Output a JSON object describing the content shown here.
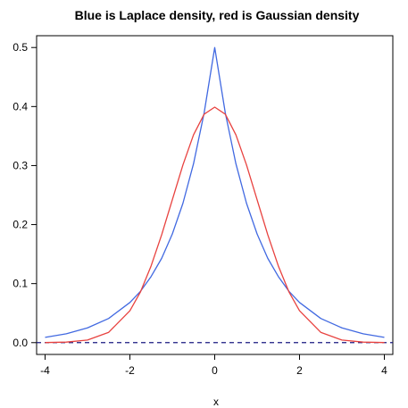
{
  "chart_data": {
    "type": "line",
    "title": "Blue is Laplace density, red is Gaussian density",
    "xlabel": "x",
    "ylabel": "",
    "xlim": [
      -4.2,
      4.2
    ],
    "ylim": [
      -0.02,
      0.52
    ],
    "x_ticks": [
      -4,
      -2,
      0,
      2,
      4
    ],
    "y_ticks": [
      0.0,
      0.1,
      0.2,
      0.3,
      0.4,
      0.5
    ],
    "x_tick_labels": [
      "-4",
      "-2",
      "0",
      "2",
      "4"
    ],
    "y_tick_labels": [
      "0.0",
      "0.1",
      "0.2",
      "0.3",
      "0.4",
      "0.5"
    ],
    "grid": false,
    "series": [
      {
        "color": "#4169e1",
        "x": [
          -4,
          -3.5,
          -3,
          -2.5,
          -2,
          -1.75,
          -1.5,
          -1.25,
          -1,
          -0.75,
          -0.5,
          -0.25,
          0,
          0.25,
          0.5,
          0.75,
          1,
          1.25,
          1.5,
          1.75,
          2,
          2.5,
          3,
          3.5,
          4
        ],
        "y": [
          0.009,
          0.015,
          0.025,
          0.041,
          0.068,
          0.087,
          0.112,
          0.143,
          0.184,
          0.236,
          0.303,
          0.389,
          0.5,
          0.389,
          0.303,
          0.236,
          0.184,
          0.143,
          0.112,
          0.087,
          0.068,
          0.041,
          0.025,
          0.015,
          0.009
        ]
      },
      {
        "color": "#e8423f",
        "x": [
          -4,
          -3.5,
          -3,
          -2.5,
          -2,
          -1.75,
          -1.5,
          -1.25,
          -1,
          -0.75,
          -0.5,
          -0.25,
          0,
          0.25,
          0.5,
          0.75,
          1,
          1.25,
          1.5,
          1.75,
          2,
          2.5,
          3,
          3.5,
          4
        ],
        "y": [
          0.0001,
          0.0009,
          0.0044,
          0.0175,
          0.054,
          0.086,
          0.13,
          0.183,
          0.242,
          0.301,
          0.352,
          0.387,
          0.399,
          0.387,
          0.352,
          0.301,
          0.242,
          0.183,
          0.13,
          0.086,
          0.054,
          0.0175,
          0.0044,
          0.0009,
          0.0001
        ]
      }
    ],
    "reference_line": {
      "y": 0,
      "color": "#1a1a80",
      "style": "dashed"
    }
  }
}
